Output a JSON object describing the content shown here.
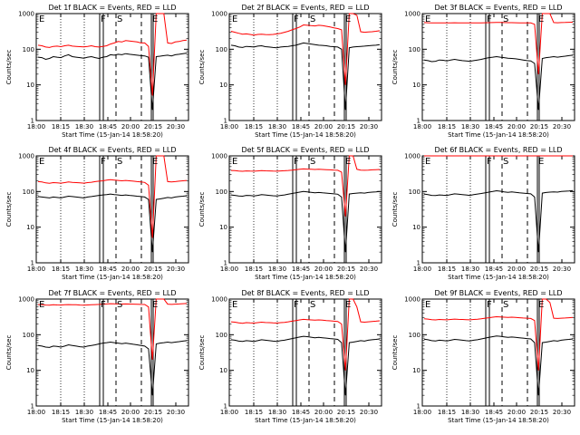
{
  "chart_data": [
    {
      "type": "line",
      "title": "Det 1f BLACK = Events, RED = LLD",
      "xlabel": "Start Time (15-Jan-14 18:58:20)",
      "ylabel": "Counts/sec",
      "yscale": "log",
      "ylim": [
        1,
        1000
      ],
      "xlim": [
        "18:00",
        "20:40"
      ],
      "x_ticks": [
        "18:00",
        "18:15",
        "18:30",
        "18:45",
        "20:00",
        "20:15",
        "20:30"
      ],
      "y_ticks": [
        "1",
        "10",
        "100",
        "1000"
      ],
      "markers": [
        "E",
        "F",
        "S",
        "E"
      ],
      "grid": false,
      "legend": "none",
      "series": [
        {
          "color": "#000000",
          "values": [
            60,
            58,
            52,
            55,
            62,
            60,
            58,
            65,
            70,
            62,
            60,
            58,
            56,
            60,
            62,
            58,
            55,
            60,
            62,
            70,
            68,
            72,
            70,
            75,
            72,
            70,
            68,
            66,
            65,
            60,
            2,
            62,
            64,
            66,
            68,
            65,
            70,
            72,
            75,
            78
          ]
        },
        {
          "color": "#ff0000",
          "values": [
            130,
            125,
            115,
            112,
            120,
            122,
            118,
            125,
            130,
            122,
            120,
            118,
            116,
            120,
            125,
            118,
            115,
            120,
            125,
            140,
            150,
            165,
            160,
            175,
            170,
            165,
            160,
            150,
            150,
            120,
            5,
            1000,
            1000,
            1000,
            150,
            145,
            160,
            165,
            175,
            180
          ]
        }
      ]
    },
    {
      "type": "line",
      "title": "Det 2f BLACK = Events, RED = LLD",
      "xlabel": "Start Time (15-Jan-14 18:58:20)",
      "ylabel": "Counts/sec",
      "yscale": "log",
      "ylim": [
        1,
        1000
      ],
      "xlim": [
        "18:00",
        "20:40"
      ],
      "x_ticks": [
        "18:00",
        "18:15",
        "18:30",
        "18:45",
        "20:00",
        "20:15",
        "20:30"
      ],
      "y_ticks": [
        "1",
        "10",
        "100",
        "1000"
      ],
      "markers": [
        "E",
        "F",
        "S",
        "E"
      ],
      "grid": false,
      "legend": "none",
      "series": [
        {
          "color": "#000000",
          "values": [
            130,
            125,
            115,
            112,
            120,
            118,
            115,
            122,
            125,
            118,
            115,
            112,
            110,
            115,
            118,
            120,
            125,
            130,
            140,
            150,
            145,
            140,
            135,
            130,
            128,
            125,
            120,
            118,
            115,
            100,
            2,
            110,
            115,
            118,
            120,
            122,
            125,
            128,
            130,
            135
          ]
        },
        {
          "color": "#ff0000",
          "values": [
            320,
            300,
            280,
            265,
            270,
            260,
            250,
            260,
            265,
            258,
            255,
            260,
            270,
            280,
            300,
            320,
            350,
            380,
            420,
            480,
            470,
            460,
            450,
            470,
            460,
            440,
            420,
            400,
            380,
            350,
            10,
            1000,
            1000,
            900,
            310,
            300,
            305,
            310,
            320,
            330
          ]
        }
      ]
    },
    {
      "type": "line",
      "title": "Det 3f BLACK = Events, RED = LLD",
      "xlabel": "Start Time (15-Jan-14 18:58:20)",
      "ylabel": "Counts/sec",
      "yscale": "log",
      "ylim": [
        1,
        1000
      ],
      "xlim": [
        "18:00",
        "20:40"
      ],
      "x_ticks": [
        "18:00",
        "18:15",
        "18:30",
        "18:45",
        "20:00",
        "20:15",
        "20:30"
      ],
      "y_ticks": [
        "1",
        "10",
        "100",
        "1000"
      ],
      "markers": [
        "E",
        "F",
        "S",
        "E"
      ],
      "grid": false,
      "legend": "none",
      "series": [
        {
          "color": "#000000",
          "values": [
            50,
            48,
            45,
            46,
            50,
            49,
            47,
            50,
            52,
            50,
            48,
            47,
            46,
            48,
            50,
            52,
            55,
            58,
            60,
            62,
            60,
            58,
            56,
            55,
            54,
            52,
            50,
            48,
            47,
            40,
            2,
            55,
            58,
            60,
            62,
            60,
            62,
            64,
            66,
            68
          ]
        },
        {
          "color": "#ff0000",
          "values": [
            560,
            555,
            550,
            548,
            552,
            550,
            548,
            552,
            555,
            552,
            550,
            548,
            546,
            548,
            550,
            552,
            555,
            558,
            560,
            565,
            562,
            560,
            558,
            556,
            555,
            552,
            550,
            548,
            547,
            500,
            20,
            1000,
            1000,
            1000,
            560,
            555,
            560,
            565,
            570,
            575
          ]
        }
      ]
    },
    {
      "type": "line",
      "title": "Det 4f BLACK = Events, RED = LLD",
      "xlabel": "Start Time (15-Jan-14 18:58:20)",
      "ylabel": "Counts/sec",
      "yscale": "log",
      "ylim": [
        1,
        1000
      ],
      "xlim": [
        "18:00",
        "20:40"
      ],
      "x_ticks": [
        "18:00",
        "18:15",
        "18:30",
        "18:45",
        "20:00",
        "20:15",
        "20:30"
      ],
      "y_ticks": [
        "1",
        "10",
        "100",
        "1000"
      ],
      "markers": [
        "E",
        "F",
        "S",
        "E"
      ],
      "grid": false,
      "legend": "none",
      "series": [
        {
          "color": "#000000",
          "values": [
            72,
            70,
            68,
            66,
            70,
            68,
            66,
            70,
            74,
            72,
            70,
            68,
            66,
            70,
            72,
            75,
            78,
            80,
            82,
            85,
            82,
            80,
            78,
            80,
            78,
            76,
            74,
            72,
            70,
            60,
            2,
            60,
            62,
            65,
            68,
            66,
            70,
            72,
            74,
            76
          ]
        },
        {
          "color": "#ff0000",
          "values": [
            190,
            185,
            175,
            170,
            178,
            175,
            172,
            178,
            185,
            180,
            178,
            175,
            172,
            178,
            182,
            190,
            195,
            200,
            210,
            215,
            210,
            205,
            200,
            205,
            200,
            195,
            190,
            185,
            180,
            150,
            5,
            1000,
            1000,
            1000,
            190,
            185,
            190,
            195,
            200,
            205
          ]
        }
      ]
    },
    {
      "type": "line",
      "title": "Det 5f BLACK = Events, RED = LLD",
      "xlabel": "Start Time (15-Jan-14 18:58:20)",
      "ylabel": "Counts/sec",
      "yscale": "log",
      "ylim": [
        1,
        1000
      ],
      "xlim": [
        "18:00",
        "20:40"
      ],
      "x_ticks": [
        "18:00",
        "18:15",
        "18:30",
        "18:45",
        "20:00",
        "20:15",
        "20:30"
      ],
      "y_ticks": [
        "1",
        "10",
        "100",
        "1000"
      ],
      "markers": [
        "E",
        "F",
        "S",
        "E"
      ],
      "grid": false,
      "legend": "none",
      "series": [
        {
          "color": "#000000",
          "values": [
            80,
            78,
            75,
            74,
            78,
            77,
            75,
            78,
            82,
            80,
            78,
            76,
            75,
            78,
            80,
            84,
            88,
            92,
            96,
            100,
            98,
            95,
            92,
            94,
            92,
            90,
            88,
            86,
            84,
            70,
            2,
            85,
            88,
            90,
            92,
            90,
            94,
            96,
            98,
            100
          ]
        },
        {
          "color": "#ff0000",
          "values": [
            390,
            385,
            375,
            370,
            378,
            375,
            372,
            378,
            385,
            380,
            378,
            375,
            372,
            378,
            382,
            390,
            400,
            410,
            420,
            430,
            425,
            420,
            415,
            420,
            415,
            410,
            405,
            400,
            395,
            350,
            20,
            1000,
            1000,
            420,
            400,
            395,
            400,
            405,
            410,
            415
          ]
        }
      ]
    },
    {
      "type": "line",
      "title": "Det 6f BLACK = Events, RED = LLD",
      "xlabel": "Start Time (15-Jan-14 18:58:20)",
      "ylabel": "Counts/sec",
      "yscale": "log",
      "ylim": [
        1,
        1000
      ],
      "xlim": [
        "18:00",
        "20:40"
      ],
      "x_ticks": [
        "18:00",
        "18:15",
        "18:30",
        "18:45",
        "20:00",
        "20:15",
        "20:30"
      ],
      "y_ticks": [
        "1",
        "10",
        "100",
        "1000"
      ],
      "markers": [
        "E",
        "F",
        "S",
        "E"
      ],
      "grid": false,
      "legend": "none",
      "series": [
        {
          "color": "#000000",
          "values": [
            85,
            82,
            78,
            77,
            80,
            79,
            78,
            82,
            86,
            84,
            82,
            80,
            78,
            82,
            85,
            88,
            92,
            96,
            100,
            105,
            102,
            98,
            95,
            98,
            95,
            92,
            90,
            88,
            86,
            70,
            2,
            90,
            94,
            96,
            98,
            96,
            100,
            102,
            104,
            106
          ]
        },
        {
          "color": "#ff0000",
          "values": [
            1000,
            1000,
            1000,
            1000,
            1000,
            1000,
            1000,
            1000,
            1000,
            1000,
            1000,
            1000,
            1000,
            1000,
            1000,
            1000,
            1000,
            1000,
            1000,
            1000,
            1000,
            1000,
            1000,
            1000,
            1000,
            1000,
            1000,
            1000,
            1000,
            1000,
            1000,
            1000,
            1000,
            1000,
            1000,
            1000,
            1000,
            1000,
            1000,
            1000
          ]
        }
      ]
    },
    {
      "type": "line",
      "title": "Det 7f BLACK = Events, RED = LLD",
      "xlabel": "Start Time (15-Jan-14 18:58:20)",
      "ylabel": "Counts/sec",
      "yscale": "log",
      "ylim": [
        1,
        1000
      ],
      "xlim": [
        "18:00",
        "20:40"
      ],
      "x_ticks": [
        "18:00",
        "18:15",
        "18:30",
        "18:45",
        "20:00",
        "20:15",
        "20:30"
      ],
      "y_ticks": [
        "1",
        "10",
        "100",
        "1000"
      ],
      "markers": [
        "E",
        "F",
        "S",
        "E"
      ],
      "grid": false,
      "legend": "none",
      "series": [
        {
          "color": "#000000",
          "values": [
            50,
            48,
            45,
            44,
            48,
            47,
            45,
            48,
            52,
            50,
            48,
            46,
            45,
            48,
            50,
            52,
            55,
            58,
            60,
            62,
            60,
            58,
            56,
            58,
            56,
            54,
            52,
            50,
            48,
            40,
            2,
            55,
            58,
            60,
            62,
            60,
            62,
            64,
            66,
            68
          ]
        },
        {
          "color": "#ff0000",
          "values": [
            700,
            690,
            680,
            670,
            690,
            685,
            680,
            690,
            700,
            695,
            690,
            680,
            675,
            685,
            690,
            700,
            710,
            720,
            730,
            740,
            735,
            730,
            725,
            730,
            725,
            720,
            715,
            710,
            705,
            600,
            20,
            1000,
            1000,
            1000,
            720,
            710,
            720,
            730,
            740,
            750
          ]
        }
      ]
    },
    {
      "type": "line",
      "title": "Det 8f BLACK = Events, RED = LLD",
      "xlabel": "Start Time (15-Jan-14 18:58:20)",
      "ylabel": "Counts/sec",
      "yscale": "log",
      "ylim": [
        1,
        1000
      ],
      "xlim": [
        "18:00",
        "20:40"
      ],
      "x_ticks": [
        "18:00",
        "18:15",
        "18:30",
        "18:45",
        "20:00",
        "20:15",
        "20:30"
      ],
      "y_ticks": [
        "1",
        "10",
        "100",
        "1000"
      ],
      "markers": [
        "E",
        "F",
        "S",
        "E"
      ],
      "grid": false,
      "legend": "none",
      "series": [
        {
          "color": "#000000",
          "values": [
            72,
            70,
            66,
            65,
            68,
            67,
            65,
            68,
            72,
            70,
            68,
            66,
            65,
            68,
            70,
            74,
            78,
            82,
            86,
            90,
            88,
            85,
            82,
            84,
            82,
            80,
            78,
            76,
            74,
            60,
            2,
            60,
            62,
            65,
            68,
            66,
            70,
            72,
            74,
            76
          ]
        },
        {
          "color": "#ff0000",
          "values": [
            230,
            225,
            215,
            210,
            218,
            215,
            212,
            218,
            225,
            220,
            218,
            215,
            212,
            218,
            222,
            230,
            240,
            250,
            260,
            270,
            265,
            260,
            255,
            260,
            255,
            250,
            245,
            240,
            235,
            200,
            10,
            1000,
            1000,
            600,
            230,
            225,
            230,
            235,
            240,
            245
          ]
        }
      ]
    },
    {
      "type": "line",
      "title": "Det 9f BLACK = Events, RED = LLD",
      "xlabel": "Start Time (15-Jan-14 18:58:20)",
      "ylabel": "Counts/sec",
      "yscale": "log",
      "ylim": [
        1,
        1000
      ],
      "xlim": [
        "18:00",
        "20:40"
      ],
      "x_ticks": [
        "18:00",
        "18:15",
        "18:30",
        "18:45",
        "20:00",
        "20:15",
        "20:30"
      ],
      "y_ticks": [
        "1",
        "10",
        "100",
        "1000"
      ],
      "markers": [
        "E",
        "F",
        "S",
        "E"
      ],
      "grid": false,
      "legend": "none",
      "series": [
        {
          "color": "#000000",
          "values": [
            75,
            72,
            68,
            67,
            70,
            69,
            67,
            70,
            74,
            72,
            70,
            68,
            67,
            70,
            72,
            76,
            80,
            84,
            88,
            92,
            90,
            87,
            84,
            86,
            84,
            82,
            80,
            78,
            76,
            60,
            2,
            60,
            62,
            65,
            68,
            66,
            70,
            72,
            74,
            76
          ]
        },
        {
          "color": "#ff0000",
          "values": [
            280,
            275,
            265,
            260,
            268,
            265,
            262,
            268,
            275,
            270,
            268,
            265,
            262,
            268,
            272,
            280,
            290,
            300,
            310,
            320,
            315,
            310,
            305,
            310,
            305,
            300,
            295,
            290,
            285,
            250,
            10,
            1000,
            1000,
            800,
            290,
            285,
            290,
            295,
            300,
            305
          ]
        }
      ]
    }
  ]
}
